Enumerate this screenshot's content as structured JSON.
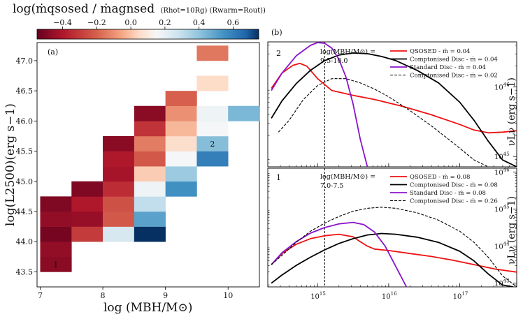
{
  "colorbar": {
    "title_main": "log(ṁqsosed / ṁagnsed",
    "title_sub": "(Rhot=10Rg) (Rwarm=Rout))",
    "ticks": [
      "−0.4",
      "−0.2",
      "0.0",
      "0.2",
      "0.4",
      "0.6"
    ],
    "tick_values": [
      -0.4,
      -0.2,
      0.0,
      0.2,
      0.4,
      0.6
    ],
    "range": [
      -0.55,
      0.75
    ]
  },
  "chart_data": [
    {
      "type": "heatmap",
      "panel": "(a)",
      "xlabel": "log (MBH/M⊙)",
      "ylabel": "log(L2500)(erg s−1)",
      "xlim": [
        6.95,
        10.5
      ],
      "ylim": [
        43.25,
        47.3
      ],
      "xticks": [
        "7",
        "8",
        "9",
        "10"
      ],
      "yticks": [
        "43.5",
        "44.0",
        "44.5",
        "45.0",
        "45.5",
        "46.0",
        "46.5",
        "47.0"
      ],
      "bin_width_x": 0.5,
      "bin_width_y": 0.25,
      "cells": [
        {
          "x": 7.0,
          "y": 43.5,
          "v": -0.48
        },
        {
          "x": 7.0,
          "y": 43.75,
          "v": -0.46
        },
        {
          "x": 7.0,
          "y": 44.0,
          "v": -0.52
        },
        {
          "x": 7.0,
          "y": 44.25,
          "v": -0.46
        },
        {
          "x": 7.0,
          "y": 44.5,
          "v": -0.5
        },
        {
          "x": 7.5,
          "y": 44.0,
          "v": -0.3
        },
        {
          "x": 7.5,
          "y": 44.25,
          "v": -0.45
        },
        {
          "x": 7.5,
          "y": 44.5,
          "v": -0.4
        },
        {
          "x": 7.5,
          "y": 44.75,
          "v": -0.5
        },
        {
          "x": 8.0,
          "y": 44.0,
          "v": 0.25
        },
        {
          "x": 8.0,
          "y": 44.25,
          "v": -0.22
        },
        {
          "x": 8.0,
          "y": 44.5,
          "v": -0.24
        },
        {
          "x": 8.0,
          "y": 44.75,
          "v": -0.34
        },
        {
          "x": 8.0,
          "y": 45.0,
          "v": -0.42
        },
        {
          "x": 8.0,
          "y": 45.25,
          "v": -0.4
        },
        {
          "x": 8.0,
          "y": 45.5,
          "v": -0.48
        },
        {
          "x": 8.5,
          "y": 44.0,
          "v": 0.75
        },
        {
          "x": 8.5,
          "y": 44.25,
          "v": 0.5
        },
        {
          "x": 8.5,
          "y": 44.5,
          "v": 0.3
        },
        {
          "x": 8.5,
          "y": 44.75,
          "v": 0.18
        },
        {
          "x": 8.5,
          "y": 45.0,
          "v": 0.02
        },
        {
          "x": 8.5,
          "y": 45.25,
          "v": -0.22
        },
        {
          "x": 8.5,
          "y": 45.5,
          "v": -0.14
        },
        {
          "x": 8.5,
          "y": 45.75,
          "v": -0.32
        },
        {
          "x": 8.5,
          "y": 46.0,
          "v": -0.48
        },
        {
          "x": 9.0,
          "y": 44.75,
          "v": 0.55
        },
        {
          "x": 9.0,
          "y": 45.0,
          "v": 0.38
        },
        {
          "x": 9.0,
          "y": 45.25,
          "v": 0.16
        },
        {
          "x": 9.0,
          "y": 45.5,
          "v": 0.06
        },
        {
          "x": 9.0,
          "y": 45.75,
          "v": -0.02
        },
        {
          "x": 9.0,
          "y": 46.0,
          "v": -0.1
        },
        {
          "x": 9.0,
          "y": 46.25,
          "v": -0.2
        },
        {
          "x": 9.5,
          "y": 45.25,
          "v": 0.6
        },
        {
          "x": 9.5,
          "y": 45.5,
          "v": 0.42
        },
        {
          "x": 9.5,
          "y": 45.75,
          "v": 0.16
        },
        {
          "x": 9.5,
          "y": 46.0,
          "v": 0.18
        },
        {
          "x": 9.5,
          "y": 46.5,
          "v": 0.05
        },
        {
          "x": 9.5,
          "y": 47.0,
          "v": -0.15
        },
        {
          "x": 10.0,
          "y": 46.0,
          "v": 0.44
        }
      ],
      "bin_labels": [
        {
          "text": "1",
          "x": 7.25,
          "y": 43.62
        },
        {
          "text": "2",
          "x": 9.75,
          "y": 45.62
        }
      ]
    },
    {
      "type": "line",
      "panel": "(b)",
      "xscale": "log",
      "xlim_log10": [
        14.3,
        17.8
      ],
      "xtick_labels": [
        {
          "label": "10^15",
          "v": 15
        },
        {
          "label": "10^16",
          "v": 16
        },
        {
          "label": "10^17",
          "v": 17
        }
      ],
      "ylabel": "νLν (erg s−1)",
      "vline_log_nu": 15.1,
      "subplots": [
        {
          "bin_label": "2",
          "annotation_line1": "log(MBH/M⊙) =",
          "annotation_line2": "9.5-10.0",
          "ylim_log10": [
            44.85,
            46.65
          ],
          "ytick_labels": [
            {
              "base": "10",
              "exp": "45",
              "v": 45
            },
            {
              "base": "10",
              "exp": "46",
              "v": 46
            }
          ],
          "series": [
            {
              "name": "QSOSED - ṁ = 0.04",
              "color": "#ee1111",
              "dash": false,
              "x": [
                14.35,
                14.5,
                14.65,
                14.75,
                14.85,
                15.0,
                15.2,
                15.5,
                15.8,
                16.2,
                16.6,
                17.0,
                17.2,
                17.4,
                17.6,
                17.8
              ],
              "y": [
                45.98,
                46.2,
                46.31,
                46.34,
                46.3,
                46.12,
                45.95,
                45.88,
                45.82,
                45.72,
                45.6,
                45.46,
                45.38,
                45.34,
                45.35,
                45.37
              ]
            },
            {
              "name": "Comptonised Disc - ṁ = 0.04",
              "color": "#000000",
              "dash": false,
              "x": [
                14.35,
                14.5,
                14.7,
                14.9,
                15.1,
                15.3,
                15.5,
                15.7,
                15.9,
                16.1,
                16.4,
                16.7,
                17.0,
                17.2,
                17.4,
                17.6,
                17.8
              ],
              "y": [
                45.55,
                45.8,
                46.05,
                46.24,
                46.38,
                46.46,
                46.49,
                46.48,
                46.44,
                46.38,
                46.24,
                46.06,
                45.78,
                45.52,
                45.22,
                44.95,
                44.85
              ]
            },
            {
              "name": "Standard Disc - ṁ = 0.04",
              "color": "#8a14cc",
              "dash": false,
              "x": [
                14.35,
                14.5,
                14.7,
                14.9,
                15.0,
                15.1,
                15.2,
                15.3,
                15.4,
                15.5,
                15.6,
                15.7
              ],
              "y": [
                45.95,
                46.2,
                46.45,
                46.6,
                46.64,
                46.63,
                46.56,
                46.4,
                46.14,
                45.75,
                45.25,
                44.85
              ]
            },
            {
              "name": "Comptonised Disc - ṁ = 0.02",
              "color": "#000000",
              "dash": true,
              "x": [
                14.45,
                14.6,
                14.8,
                15.0,
                15.2,
                15.4,
                15.6,
                15.8,
                16.0,
                16.3,
                16.6,
                16.9,
                17.2,
                17.4
              ],
              "y": [
                45.35,
                45.52,
                45.82,
                46.02,
                46.12,
                46.12,
                46.06,
                45.97,
                45.86,
                45.66,
                45.44,
                45.2,
                44.95,
                44.85
              ]
            }
          ]
        },
        {
          "bin_label": "1",
          "annotation_line1": "log(MBH/M⊙) =",
          "annotation_line2": "7.0-7.5",
          "ylim_log10": [
            42.9,
            46.1
          ],
          "ytick_labels": [
            {
              "base": "10",
              "exp": "43",
              "v": 43
            },
            {
              "base": "10",
              "exp": "44",
              "v": 44
            },
            {
              "base": "10",
              "exp": "45",
              "v": 45
            },
            {
              "base": "10",
              "exp": "46",
              "v": 46
            }
          ],
          "series": [
            {
              "name": "QSOSED - ṁ = 0.08",
              "color": "#ee1111",
              "dash": false,
              "x": [
                14.35,
                14.5,
                14.7,
                14.9,
                15.1,
                15.3,
                15.5,
                15.6,
                15.7,
                15.8,
                16.0,
                16.3,
                16.6,
                16.9,
                17.2,
                17.5,
                17.8
              ],
              "y": [
                43.5,
                43.8,
                44.05,
                44.2,
                44.28,
                44.32,
                44.25,
                44.12,
                44.0,
                43.92,
                43.88,
                43.8,
                43.72,
                43.62,
                43.5,
                43.38,
                43.3
              ]
            },
            {
              "name": "Comptonised Disc - ṁ = 0.08",
              "color": "#000000",
              "dash": false,
              "x": [
                14.35,
                14.5,
                14.7,
                14.9,
                15.1,
                15.3,
                15.5,
                15.7,
                15.9,
                16.1,
                16.4,
                16.7,
                17.0,
                17.2,
                17.4,
                17.6,
                17.75
              ],
              "y": [
                43.0,
                43.22,
                43.48,
                43.7,
                43.9,
                44.07,
                44.2,
                44.3,
                44.34,
                44.32,
                44.24,
                44.1,
                43.86,
                43.6,
                43.25,
                42.95,
                42.9
              ]
            },
            {
              "name": "Standard Disc - ṁ = 0.08",
              "color": "#8a14cc",
              "dash": false,
              "x": [
                14.35,
                14.5,
                14.7,
                14.9,
                15.1,
                15.3,
                15.5,
                15.65,
                15.8,
                15.95,
                16.1,
                16.25
              ],
              "y": [
                43.5,
                43.82,
                44.12,
                44.35,
                44.5,
                44.6,
                44.64,
                44.58,
                44.38,
                44.0,
                43.45,
                42.9
              ]
            },
            {
              "name": "Comptonised Disc - ṁ = 0.26",
              "color": "#000000",
              "dash": true,
              "x": [
                14.35,
                14.5,
                14.7,
                14.9,
                15.1,
                15.3,
                15.5,
                15.7,
                15.9,
                16.1,
                16.4,
                16.7,
                17.0,
                17.2,
                17.4,
                17.6,
                17.8
              ],
              "y": [
                43.5,
                43.75,
                44.1,
                44.4,
                44.62,
                44.8,
                44.94,
                45.02,
                45.05,
                45.02,
                44.9,
                44.7,
                44.4,
                44.1,
                43.7,
                43.2,
                42.9
              ]
            }
          ]
        }
      ]
    }
  ]
}
